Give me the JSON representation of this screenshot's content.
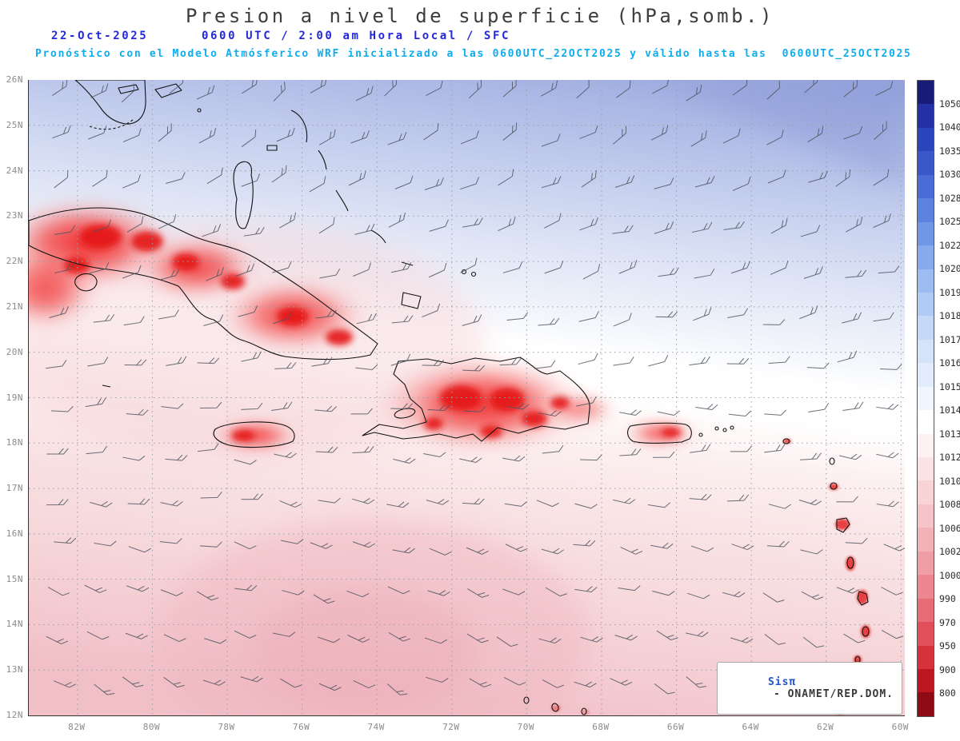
{
  "header": {
    "title": "Presion a nivel de superficie (hPa,somb.)",
    "date": "22-Oct-2025",
    "time_line": "0600 UTC / 2:00 am Hora Local / SFC",
    "model_line": "Pronóstico con el Modelo Atmósferico WRF inicializado a las 0600UTC_22OCT2025 y válido hasta las  0600UTC_25OCT2025"
  },
  "map": {
    "variable": "Presion a nivel de superficie",
    "units": "hPa",
    "overlay": "wind barbs",
    "lat_labels": [
      "26N",
      "25N",
      "24N",
      "23N",
      "22N",
      "21N",
      "20N",
      "19N",
      "18N",
      "17N",
      "16N",
      "15N",
      "14N",
      "13N",
      "12N"
    ],
    "lon_labels": [
      "82W",
      "80W",
      "78W",
      "76W",
      "74W",
      "72W",
      "70W",
      "68W",
      "66W",
      "64W",
      "62W",
      "60W"
    ],
    "attribution": {
      "brand": "Sisπ",
      "org": "- ONAMET/REP.DOM."
    }
  },
  "colorbar": {
    "labels": [
      "1050",
      "1040",
      "1035",
      "1030",
      "1028",
      "1025",
      "1022",
      "1020",
      "1019",
      "1018",
      "1017",
      "1016",
      "1015",
      "1014",
      "1013",
      "1012",
      "1010",
      "1008",
      "1006",
      "1002",
      "1000",
      "990",
      "970",
      "950",
      "900",
      "800"
    ],
    "colors": [
      "#181c78",
      "#2330a6",
      "#2c44bc",
      "#3a58ca",
      "#4a6cd6",
      "#5a82de",
      "#7097e6",
      "#86aaec",
      "#9cbcf2",
      "#b0ccf6",
      "#c4d8f8",
      "#d4e2fa",
      "#e2ecfc",
      "#f0f5fe",
      "#ffffff",
      "#fdf1f2",
      "#fbe3e5",
      "#f9d4d7",
      "#f6c4c8",
      "#f3b2b8",
      "#f09ea5",
      "#ec8790",
      "#e76c76",
      "#e14f5a",
      "#d5323d",
      "#bd1722",
      "#8e0a14"
    ]
  },
  "accent_colors": {
    "date_blue": "#2328d8",
    "model_cyan": "#0fadee",
    "low_pressure_red": "#e41414",
    "high_pressure_blue": "#96a4dc"
  }
}
